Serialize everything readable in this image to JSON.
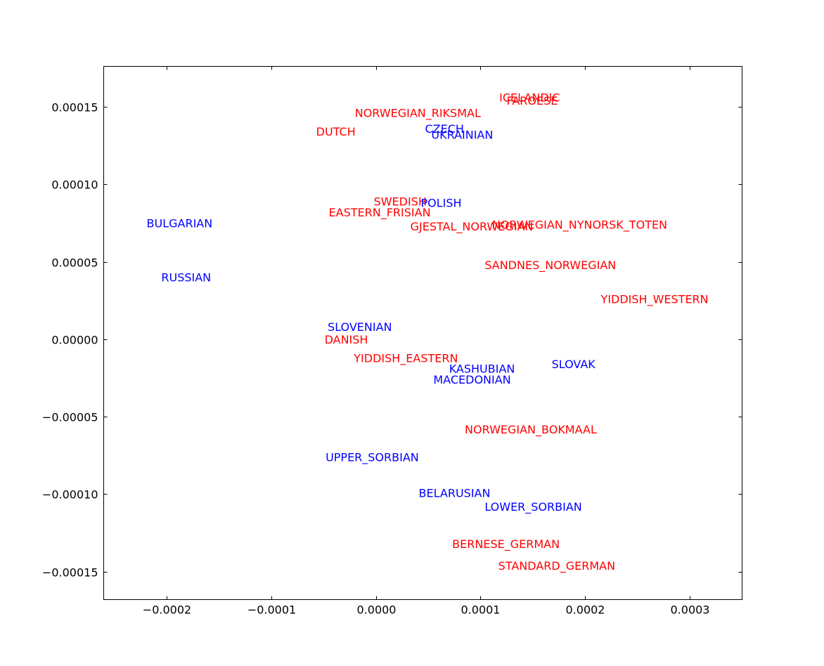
{
  "chart_data": {
    "type": "scatter",
    "title": "",
    "xlabel": "",
    "ylabel": "",
    "xlim": [
      -0.00026,
      0.00035
    ],
    "ylim": [
      -0.000168,
      0.000176
    ],
    "xticks": [
      {
        "value": -0.0002,
        "label": "−0.0002"
      },
      {
        "value": -0.0001,
        "label": "−0.0001"
      },
      {
        "value": 0.0,
        "label": "0.0000"
      },
      {
        "value": 0.0001,
        "label": "0.0001"
      },
      {
        "value": 0.0002,
        "label": "0.0002"
      },
      {
        "value": 0.0003,
        "label": "0.0003"
      }
    ],
    "yticks": [
      {
        "value": 0.00015,
        "label": "0.00015"
      },
      {
        "value": 0.0001,
        "label": "0.00010"
      },
      {
        "value": 5e-05,
        "label": "0.00005"
      },
      {
        "value": 0.0,
        "label": "0.00000"
      },
      {
        "value": -5e-05,
        "label": "−0.00005"
      },
      {
        "value": -0.0001,
        "label": "−0.00010"
      },
      {
        "value": -0.00015,
        "label": "−0.00015"
      }
    ],
    "grid": false,
    "colors": {
      "red": "#ff0000",
      "blue": "#0000ff"
    },
    "points": [
      {
        "label": "ICELANDIC",
        "x": 0.000118,
        "y": 0.000156,
        "color": "red"
      },
      {
        "label": "FAROESE",
        "x": 0.000125,
        "y": 0.000154,
        "color": "red"
      },
      {
        "label": "NORWEGIAN_RIKSMAL",
        "x": -2e-05,
        "y": 0.000146,
        "color": "red"
      },
      {
        "label": "DUTCH",
        "x": -5.7e-05,
        "y": 0.000134,
        "color": "red"
      },
      {
        "label": "CZECH",
        "x": 4.7e-05,
        "y": 0.000136,
        "color": "blue"
      },
      {
        "label": "UKRAINIAN",
        "x": 5.3e-05,
        "y": 0.000132,
        "color": "blue"
      },
      {
        "label": "SWEDISH",
        "x": -2e-06,
        "y": 8.9e-05,
        "color": "red"
      },
      {
        "label": "POLISH",
        "x": 4.3e-05,
        "y": 8.8e-05,
        "color": "blue"
      },
      {
        "label": "EASTERN_FRISIAN",
        "x": -4.5e-05,
        "y": 8.2e-05,
        "color": "red"
      },
      {
        "label": "BULGARIAN",
        "x": -0.000219,
        "y": 7.5e-05,
        "color": "blue"
      },
      {
        "label": "GJESTAL_NORWEGIAN",
        "x": 3.3e-05,
        "y": 7.3e-05,
        "color": "red"
      },
      {
        "label": "NORWEGIAN_NYNORSK_TOTEN",
        "x": 0.000111,
        "y": 7.4e-05,
        "color": "red"
      },
      {
        "label": "SANDNES_NORWEGIAN",
        "x": 0.000104,
        "y": 4.8e-05,
        "color": "red"
      },
      {
        "label": "RUSSIAN",
        "x": -0.000205,
        "y": 4e-05,
        "color": "blue"
      },
      {
        "label": "YIDDISH_WESTERN",
        "x": 0.000215,
        "y": 2.6e-05,
        "color": "red"
      },
      {
        "label": "SLOVENIAN",
        "x": -4.6e-05,
        "y": 8e-06,
        "color": "blue"
      },
      {
        "label": "DANISH",
        "x": -4.9e-05,
        "y": 0.0,
        "color": "red"
      },
      {
        "label": "YIDDISH_EASTERN",
        "x": -2.1e-05,
        "y": -1.2e-05,
        "color": "red"
      },
      {
        "label": "KASHUBIAN",
        "x": 7e-05,
        "y": -1.9e-05,
        "color": "blue"
      },
      {
        "label": "SLOVAK",
        "x": 0.000168,
        "y": -1.6e-05,
        "color": "blue"
      },
      {
        "label": "MACEDONIAN",
        "x": 5.5e-05,
        "y": -2.6e-05,
        "color": "blue"
      },
      {
        "label": "NORWEGIAN_BOKMAAL",
        "x": 8.5e-05,
        "y": -5.8e-05,
        "color": "red"
      },
      {
        "label": "UPPER_SORBIAN",
        "x": -4.8e-05,
        "y": -7.6e-05,
        "color": "blue"
      },
      {
        "label": "BELARUSIAN",
        "x": 4.1e-05,
        "y": -9.9e-05,
        "color": "blue"
      },
      {
        "label": "LOWER_SORBIAN",
        "x": 0.000104,
        "y": -0.000108,
        "color": "blue"
      },
      {
        "label": "BERNESE_GERMAN",
        "x": 7.3e-05,
        "y": -0.000132,
        "color": "red"
      },
      {
        "label": "STANDARD_GERMAN",
        "x": 0.000117,
        "y": -0.000146,
        "color": "red"
      }
    ]
  }
}
